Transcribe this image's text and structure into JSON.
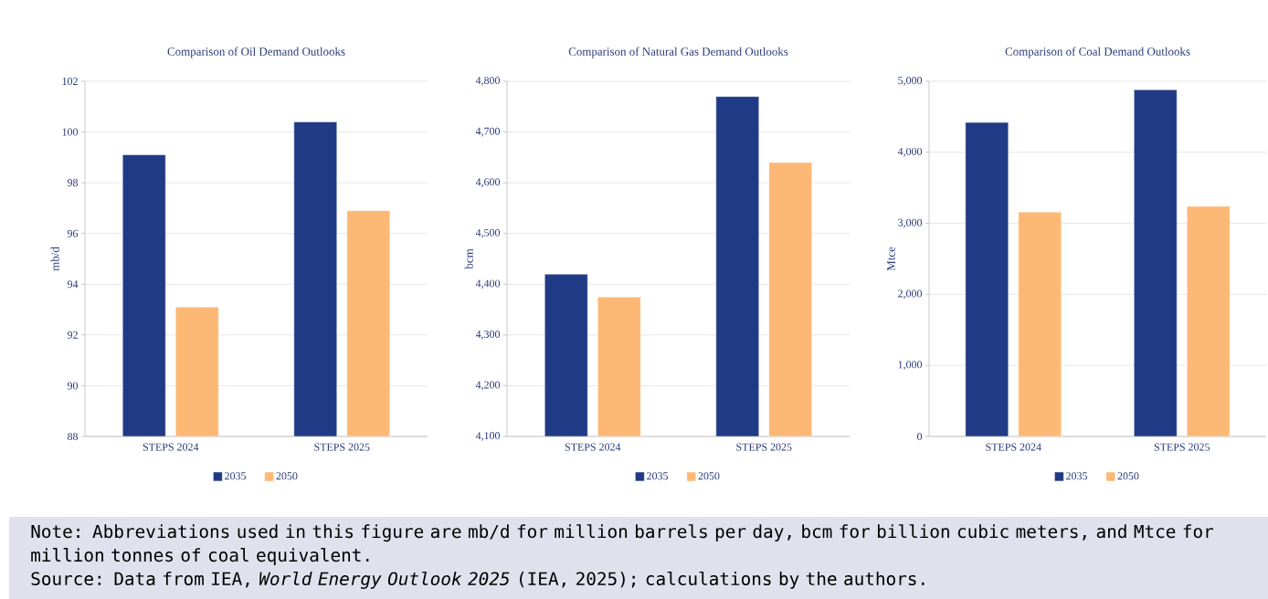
{
  "chart_data": [
    {
      "type": "bar",
      "title": "Comparison of Oil Demand Outlooks",
      "ylabel": "mb/d",
      "categories": [
        "STEPS 2024",
        "STEPS 2025"
      ],
      "series": [
        {
          "name": "2035",
          "color": "#213a85",
          "values": [
            99.1,
            100.4
          ]
        },
        {
          "name": "2050",
          "color": "#fdb876",
          "values": [
            93.1,
            96.9
          ]
        }
      ],
      "ylim": [
        88,
        102
      ],
      "yticks": [
        88,
        90,
        92,
        94,
        96,
        98,
        100,
        102
      ],
      "grid": "y",
      "legend": "bottom"
    },
    {
      "type": "bar",
      "title": "Comparison of Natural Gas Demand Outlooks",
      "ylabel": "bcm",
      "categories": [
        "STEPS 2024",
        "STEPS 2025"
      ],
      "series": [
        {
          "name": "2035",
          "color": "#213a85",
          "values": [
            4420,
            4770
          ]
        },
        {
          "name": "2050",
          "color": "#fdb876",
          "values": [
            4375,
            4640
          ]
        }
      ],
      "ylim": [
        4100,
        4800
      ],
      "yticks": [
        {
          "value": 4100,
          "label": "4,100"
        },
        {
          "value": 4200,
          "label": "4,200"
        },
        {
          "value": 4300,
          "label": "4,300"
        },
        {
          "value": 4400,
          "label": "4,400"
        },
        {
          "value": 4500,
          "label": "4,500"
        },
        {
          "value": 4600,
          "label": "4,600"
        },
        {
          "value": 4700,
          "label": "4,700"
        },
        {
          "value": 4800,
          "label": "4,800"
        }
      ],
      "grid": "y",
      "legend": "bottom"
    },
    {
      "type": "bar",
      "title": "Comparison of Coal Demand Outlooks",
      "ylabel": "Mtce",
      "categories": [
        "STEPS 2024",
        "STEPS 2025"
      ],
      "series": [
        {
          "name": "2035",
          "color": "#213a85",
          "values": [
            4420,
            4880
          ]
        },
        {
          "name": "2050",
          "color": "#fdb876",
          "values": [
            3160,
            3240
          ]
        }
      ],
      "ylim": [
        0,
        5000
      ],
      "yticks": [
        0,
        {
          "value": 1000,
          "label": "1,000"
        },
        {
          "value": 2000,
          "label": "2,000"
        },
        {
          "value": 3000,
          "label": "3,000"
        },
        {
          "value": 4000,
          "label": "4,000"
        },
        {
          "value": 5000,
          "label": "5,000"
        }
      ],
      "grid": "y",
      "legend": "bottom"
    },
    {
      "type": "other",
      "annotations": [
        "Note: Abbreviations used in this figure are mb/d for million barrels per day, bcm for billion cubic meters, and Mtce for million tonnes of coal equivalent.",
        "Source: Data from IEA, *World Energy Outlook 2025* (IEA, 2025); calculations by the authors."
      ]
    }
  ]
}
